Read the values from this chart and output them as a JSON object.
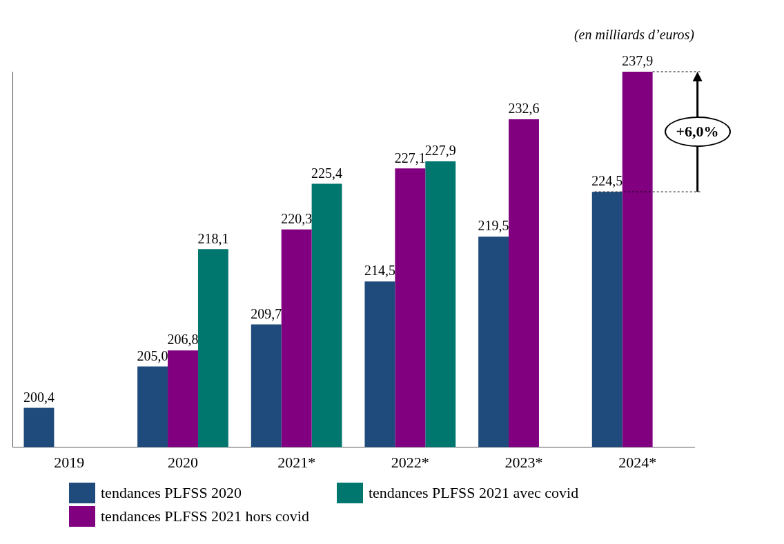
{
  "chart_data": {
    "type": "bar",
    "subtitle": "(en milliards d’euros)",
    "categories": [
      "2019",
      "2020",
      "2021*",
      "2022*",
      "2023*",
      "2024*"
    ],
    "series": [
      {
        "name": "tendances PLFSS 2020",
        "color": "#1f4a7c",
        "values": [
          200.4,
          205.0,
          209.7,
          214.5,
          219.5,
          224.5
        ],
        "value_labels": [
          "200,4",
          "205,0",
          "209,7",
          "214,5",
          "219,5",
          "224,5"
        ]
      },
      {
        "name": "tendances PLFSS 2021 hors covid",
        "color": "#800080",
        "values": [
          null,
          206.8,
          220.3,
          227.1,
          232.6,
          237.9
        ],
        "value_labels": [
          null,
          "206,8",
          "220,3",
          "227,1",
          "232,6",
          "237,9"
        ]
      },
      {
        "name": "tendances PLFSS 2021 avec covid",
        "color": "#00776e",
        "values": [
          null,
          218.1,
          225.4,
          227.9,
          null,
          null
        ],
        "value_labels": [
          null,
          "218,1",
          "225,4",
          "227,9",
          null,
          null
        ]
      }
    ],
    "ylim": [
      196,
      237.9
    ],
    "grid": false,
    "legend": "bottom left",
    "annotations": [
      "+6,0%"
    ]
  }
}
